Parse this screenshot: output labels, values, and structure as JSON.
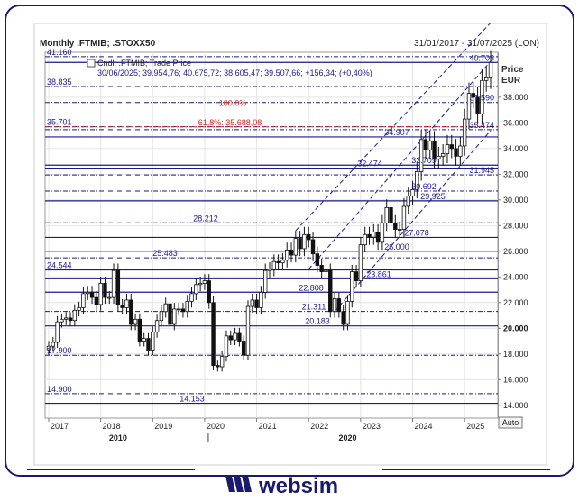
{
  "header": {
    "title": "Monthly .FTMIB; .STOXX50",
    "date_range": "31/01/2017 - 31/07/2025 (LON)",
    "legend_label": "Cndl; .FTMIB; Trade Price",
    "ohlc_readout": "30/06/2025; 39.954,76; 40.675,72; 38.605,47; 39.507,66; +156,34; (+0,40%)"
  },
  "axis": {
    "price_label": "Price",
    "currency_label": "EUR",
    "auto_label": "Auto",
    "y_ticks": [
      14000,
      16000,
      18000,
      20000,
      22000,
      24000,
      26000,
      28000,
      30000,
      32000,
      34000,
      36000,
      38000
    ],
    "y_tick_labels": [
      "14.000",
      "16.000",
      "18.000",
      "20.000",
      "22.000",
      "24.000",
      "26.000",
      "28.000",
      "30.000",
      "32.000",
      "34.000",
      "36.000",
      "38.000"
    ],
    "x_year_labels": [
      "2017",
      "2018",
      "2019",
      "2020",
      "2021",
      "2022",
      "2023",
      "2024",
      "2025"
    ],
    "x_decade_labels": [
      "2010",
      "2020"
    ]
  },
  "brand": {
    "name": "websim"
  },
  "colors": {
    "levels": "#1a1a8c",
    "fib": "#e02020",
    "candle_up": "#ffffff",
    "candle_down": "#111111",
    "frame_border": "#1a1a6e"
  },
  "chart_data": {
    "type": "candlestick",
    "title": "Monthly .FTMIB; .STOXX50",
    "ylabel": "Price EUR",
    "ylim": [
      13000,
      41500
    ],
    "xlim": [
      "2017-01",
      "2025-07"
    ],
    "monthly_close": [
      [
        "2017-01",
        18600
      ],
      [
        "2017-02",
        18900
      ],
      [
        "2017-03",
        20500
      ],
      [
        "2017-04",
        20700
      ],
      [
        "2017-05",
        20800
      ],
      [
        "2017-06",
        20600
      ],
      [
        "2017-07",
        21400
      ],
      [
        "2017-08",
        21600
      ],
      [
        "2017-09",
        22700
      ],
      [
        "2017-10",
        22800
      ],
      [
        "2017-11",
        22400
      ],
      [
        "2017-12",
        21850
      ],
      [
        "2018-01",
        23500
      ],
      [
        "2018-02",
        22400
      ],
      [
        "2018-03",
        22400
      ],
      [
        "2018-04",
        24500
      ],
      [
        "2018-05",
        21800
      ],
      [
        "2018-06",
        21600
      ],
      [
        "2018-07",
        22200
      ],
      [
        "2018-08",
        20300
      ],
      [
        "2018-09",
        20700
      ],
      [
        "2018-10",
        19000
      ],
      [
        "2018-11",
        19200
      ],
      [
        "2018-12",
        18300
      ],
      [
        "2019-01",
        19700
      ],
      [
        "2019-02",
        20600
      ],
      [
        "2019-03",
        21300
      ],
      [
        "2019-04",
        21900
      ],
      [
        "2019-05",
        20300
      ],
      [
        "2019-06",
        21500
      ],
      [
        "2019-07",
        21500
      ],
      [
        "2019-08",
        21300
      ],
      [
        "2019-09",
        22100
      ],
      [
        "2019-10",
        22700
      ],
      [
        "2019-11",
        23400
      ],
      [
        "2019-12",
        23500
      ],
      [
        "2020-01",
        23700
      ],
      [
        "2020-02",
        22000
      ],
      [
        "2020-03",
        17100
      ],
      [
        "2020-04",
        17000
      ],
      [
        "2020-05",
        17800
      ],
      [
        "2020-06",
        19400
      ],
      [
        "2020-07",
        19100
      ],
      [
        "2020-08",
        19600
      ],
      [
        "2020-09",
        19000
      ],
      [
        "2020-10",
        17900
      ],
      [
        "2020-11",
        21700
      ],
      [
        "2020-12",
        22200
      ],
      [
        "2021-01",
        21600
      ],
      [
        "2021-02",
        22800
      ],
      [
        "2021-03",
        24500
      ],
      [
        "2021-04",
        24600
      ],
      [
        "2021-05",
        25200
      ],
      [
        "2021-06",
        25100
      ],
      [
        "2021-07",
        25300
      ],
      [
        "2021-08",
        26100
      ],
      [
        "2021-09",
        25700
      ],
      [
        "2021-10",
        27000
      ],
      [
        "2021-11",
        26200
      ],
      [
        "2021-12",
        27300
      ],
      [
        "2022-01",
        26900
      ],
      [
        "2022-02",
        25800
      ],
      [
        "2022-03",
        24900
      ],
      [
        "2022-04",
        24400
      ],
      [
        "2022-05",
        24500
      ],
      [
        "2022-06",
        21300
      ],
      [
        "2022-07",
        22300
      ],
      [
        "2022-08",
        21300
      ],
      [
        "2022-09",
        20300
      ],
      [
        "2022-10",
        22100
      ],
      [
        "2022-11",
        24400
      ],
      [
        "2022-12",
        23700
      ],
      [
        "2023-01",
        26500
      ],
      [
        "2023-02",
        27300
      ],
      [
        "2023-03",
        27100
      ],
      [
        "2023-04",
        27500
      ],
      [
        "2023-05",
        26700
      ],
      [
        "2023-06",
        28200
      ],
      [
        "2023-07",
        29400
      ],
      [
        "2023-08",
        28200
      ],
      [
        "2023-09",
        27700
      ],
      [
        "2023-10",
        27700
      ],
      [
        "2023-11",
        29500
      ],
      [
        "2023-12",
        30300
      ],
      [
        "2024-01",
        30800
      ],
      [
        "2024-02",
        32200
      ],
      [
        "2024-03",
        34700
      ],
      [
        "2024-04",
        33900
      ],
      [
        "2024-05",
        34600
      ],
      [
        "2024-06",
        33200
      ],
      [
        "2024-07",
        33400
      ],
      [
        "2024-08",
        33600
      ],
      [
        "2024-09",
        34300
      ],
      [
        "2024-10",
        34000
      ],
      [
        "2024-11",
        33400
      ],
      [
        "2024-12",
        34200
      ],
      [
        "2025-01",
        36300
      ],
      [
        "2025-02",
        38300
      ],
      [
        "2025-03",
        38000
      ],
      [
        "2025-04",
        36700
      ],
      [
        "2025-05",
        39300
      ],
      [
        "2025-06",
        39507.66
      ],
      [
        "2025-07",
        40700
      ]
    ],
    "levels": [
      {
        "value": 41160,
        "label": "41.160",
        "side": "left"
      },
      {
        "value": 40708,
        "label": "40.708",
        "side": "right"
      },
      {
        "value": 38835,
        "label": "38.835",
        "side": "left"
      },
      {
        "value": 37590,
        "label": "37.590",
        "side": "right"
      },
      {
        "value": 35701,
        "label": "35.701",
        "side": "left"
      },
      {
        "value": 35474,
        "label": "35.474",
        "side": "right"
      },
      {
        "value": 34907,
        "label": "34.907",
        "side": "mid"
      },
      {
        "value": 32709,
        "label": "32.709",
        "side": "mid"
      },
      {
        "value": 32474,
        "label": "32.474",
        "side": "mid"
      },
      {
        "value": 31945,
        "label": "31.945",
        "side": "right"
      },
      {
        "value": 30692,
        "label": "30.692",
        "side": "mid"
      },
      {
        "value": 29925,
        "label": "29.925",
        "side": "mid"
      },
      {
        "value": 28212,
        "label": "28.212",
        "side": "mid"
      },
      {
        "value": 27078,
        "label": "27.078",
        "side": "mid"
      },
      {
        "value": 26000,
        "label": "26.000",
        "side": "mid"
      },
      {
        "value": 25483,
        "label": "25.483",
        "side": "mid"
      },
      {
        "value": 24544,
        "label": "24.544",
        "side": "left"
      },
      {
        "value": 23861,
        "label": "23.861",
        "side": "mid"
      },
      {
        "value": 22808,
        "label": "22.808",
        "side": "mid"
      },
      {
        "value": 21311,
        "label": "21.311",
        "side": "mid"
      },
      {
        "value": 20183,
        "label": "20.183",
        "side": "mid"
      },
      {
        "value": 17900,
        "label": "17.900",
        "side": "left"
      },
      {
        "value": 14900,
        "label": "14.900",
        "side": "left"
      },
      {
        "value": 14153,
        "label": "14.153",
        "side": "mid"
      }
    ],
    "fib_labels": [
      {
        "value": 37200,
        "label": "100,0%"
      },
      {
        "value": 35688.08,
        "label": "61,8%: 35.688,08"
      }
    ]
  }
}
